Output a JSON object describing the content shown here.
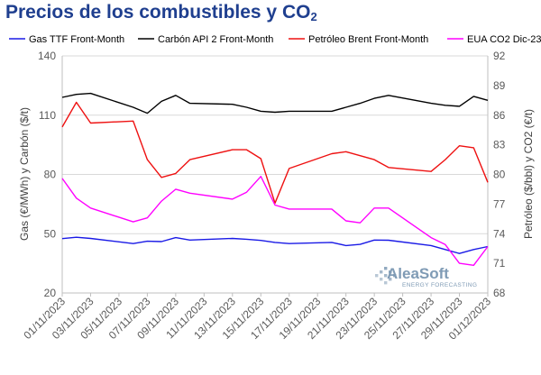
{
  "title": {
    "text": "Precios de los combustibles y CO",
    "subscript": "2"
  },
  "logo": {
    "name": "AleaSoft",
    "tagline": "ENERGY FORECASTING",
    "color": "#7f9bb5"
  },
  "chart_data": {
    "type": "line",
    "x": [
      "01/11/2023",
      "02/11/2023",
      "03/11/2023",
      "06/11/2023",
      "07/11/2023",
      "08/11/2023",
      "09/11/2023",
      "10/11/2023",
      "13/11/2023",
      "14/11/2023",
      "15/11/2023",
      "16/11/2023",
      "17/11/2023",
      "20/11/2023",
      "21/11/2023",
      "22/11/2023",
      "23/11/2023",
      "24/11/2023",
      "27/11/2023",
      "28/11/2023",
      "29/11/2023",
      "30/11/2023",
      "01/12/2023"
    ],
    "x_tick_labels": [
      "01/11/2023",
      "03/11/2023",
      "05/11/2023",
      "07/11/2023",
      "09/11/2023",
      "11/11/2023",
      "13/11/2023",
      "15/11/2023",
      "17/11/2023",
      "19/11/2023",
      "21/11/2023",
      "23/11/2023",
      "25/11/2023",
      "27/11/2023",
      "29/11/2023",
      "01/12/2023"
    ],
    "ylabel": "Gas (€/MWh) y Carbón ($/t)",
    "ylim": [
      20,
      140
    ],
    "yticks": [
      20,
      50,
      80,
      110,
      140
    ],
    "y2label": "Petróleo ($/bbl) y CO2 (€/t)",
    "y2lim": [
      68,
      92
    ],
    "y2ticks": [
      68,
      71,
      74,
      77,
      80,
      83,
      86,
      89,
      92
    ],
    "grid": "horizontal",
    "legend_position": "top",
    "series": [
      {
        "name": "Gas TTF Front-Month",
        "axis": "left",
        "color": "#1a1ae6",
        "values": [
          47.5,
          48.2,
          47.6,
          45.0,
          46.2,
          46.0,
          48.0,
          46.8,
          47.6,
          47.2,
          46.6,
          45.6,
          45.0,
          45.6,
          44.0,
          44.6,
          46.8,
          46.7,
          44.0,
          42.0,
          40.0,
          42.0,
          43.5
        ]
      },
      {
        "name": "Carbón API 2 Front-Month",
        "axis": "left",
        "color": "#000000",
        "values": [
          119,
          120.5,
          121,
          114,
          111,
          117,
          120,
          116,
          115.5,
          114,
          112,
          111.5,
          112,
          112,
          114,
          116,
          118.5,
          120,
          116,
          115,
          114.5,
          119.5,
          117.5
        ]
      },
      {
        "name": "Petróleo Brent Front-Month",
        "axis": "right",
        "color": "#ee1111",
        "values": [
          84.8,
          87.3,
          85.2,
          85.4,
          81.5,
          79.7,
          80.1,
          81.5,
          82.5,
          82.5,
          81.6,
          77.1,
          80.6,
          82.1,
          82.3,
          81.9,
          81.5,
          80.7,
          80.3,
          81.5,
          82.9,
          82.7,
          79.2
        ]
      },
      {
        "name": "EUA CO2 Dic-23",
        "axis": "right",
        "color": "#ff00ff",
        "values": [
          79.6,
          77.6,
          76.6,
          75.2,
          75.6,
          77.3,
          78.5,
          78.1,
          77.5,
          78.2,
          79.8,
          76.9,
          76.5,
          76.5,
          75.3,
          75.1,
          76.6,
          76.6,
          73.6,
          72.9,
          71.0,
          70.8,
          72.7
        ]
      }
    ]
  }
}
